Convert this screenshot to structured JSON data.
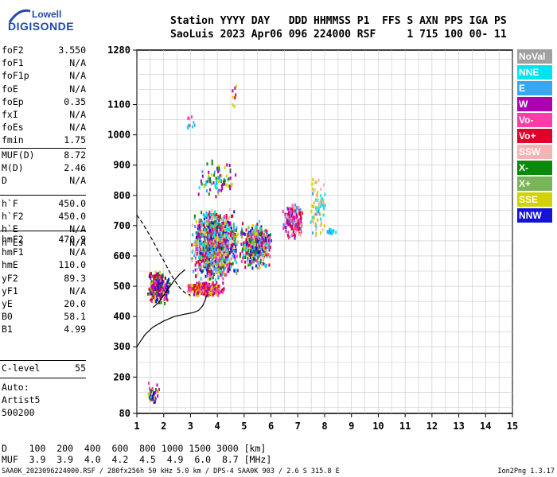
{
  "logo": {
    "line1": "Lowell",
    "line2": "DIGISONDE"
  },
  "header": {
    "line1": "Station YYYY DAY   DDD HHMMSS P1  FFS S AXN PPS IGA PS",
    "line2": "SaoLuis 2023 Apr06 096 224000 RSF     1 715 100 00- 11"
  },
  "params": [
    {
      "group": 1,
      "name": "foF2",
      "value": "3.550"
    },
    {
      "group": 1,
      "name": "foF1",
      "value": "N/A"
    },
    {
      "group": 1,
      "name": "foF1p",
      "value": "N/A"
    },
    {
      "group": 1,
      "name": "foE",
      "value": "N/A"
    },
    {
      "group": 1,
      "name": "foEp",
      "value": "0.35"
    },
    {
      "group": 1,
      "name": "fxI",
      "value": "N/A"
    },
    {
      "group": 1,
      "name": "foEs",
      "value": "N/A"
    },
    {
      "group": 1,
      "name": "fmin",
      "value": "1.75"
    },
    {
      "group": 2,
      "name": "MUF(D)",
      "value": "8.72"
    },
    {
      "group": 2,
      "name": "M(D)",
      "value": "2.46"
    },
    {
      "group": 2,
      "name": "D",
      "value": "N/A"
    },
    {
      "group": 3,
      "name": "h`F",
      "value": "450.0"
    },
    {
      "group": 3,
      "name": "h`F2",
      "value": "450.0"
    },
    {
      "group": 3,
      "name": "h`E",
      "value": "N/A"
    },
    {
      "group": 3,
      "name": "h`Es",
      "value": "N/A"
    },
    {
      "group": 4,
      "name": "hmF2",
      "value": "470.9"
    },
    {
      "group": 4,
      "name": "hmF1",
      "value": "N/A"
    },
    {
      "group": 4,
      "name": "hmE",
      "value": "110.0"
    },
    {
      "group": 4,
      "name": "yF2",
      "value": "89.3"
    },
    {
      "group": 4,
      "name": "yF1",
      "value": "N/A"
    },
    {
      "group": 4,
      "name": "yE",
      "value": "20.0"
    },
    {
      "group": 4,
      "name": "B0",
      "value": "58.1"
    },
    {
      "group": 4,
      "name": "B1",
      "value": "4.99"
    },
    {
      "group": 5,
      "name": "C-level",
      "value": "55"
    }
  ],
  "auto": {
    "line1": "Auto:",
    "line2": "Artist5",
    "line3": "500200"
  },
  "legend": [
    {
      "label": "NoVal",
      "color": "#a0a0a0"
    },
    {
      "label": "NNE",
      "color": "#00e4f0"
    },
    {
      "label": "E",
      "color": "#3aa6f0"
    },
    {
      "label": "W",
      "color": "#b000b0"
    },
    {
      "label": "Vo-",
      "color": "#ff3ca8"
    },
    {
      "label": "Vo+",
      "color": "#e0002a"
    },
    {
      "label": "SSW",
      "color": "#f4b4b4"
    },
    {
      "label": "X-",
      "color": "#0a8a0a"
    },
    {
      "label": "X+",
      "color": "#78b45a"
    },
    {
      "label": "SSE",
      "color": "#d2d200"
    },
    {
      "label": "NNW",
      "color": "#1414d2"
    }
  ],
  "footer": {
    "line1": "D    100  200  400  600  800 1000 1500 3000 [km]",
    "line2": "MUF  3.9  3.9  4.0  4.2  4.5  4.9  6.0  8.7 [MHz]",
    "line3": "SAA0K_2023096224000.RSF / 280fx256h 50 kHz 5.0 km / DPS-4 SAA0K 903 / 2.6 S 315.8 E",
    "version": "Ion2Png 1.3.17"
  },
  "chart_data": {
    "type": "scatter",
    "x_ticks": [
      1,
      2,
      3,
      4,
      5,
      6,
      7,
      8,
      9,
      10,
      11,
      12,
      13,
      14,
      15
    ],
    "y_ticks": [
      80,
      200,
      300,
      400,
      500,
      600,
      700,
      800,
      900,
      1000,
      1100,
      1280
    ],
    "xlim": [
      1,
      15
    ],
    "ylim": [
      80,
      1280
    ],
    "grid": true,
    "virtual_height_trace": {
      "x": [
        3.0,
        3.05,
        3.1,
        3.15,
        3.25,
        3.35,
        3.45,
        3.6,
        3.8,
        4.0,
        4.2,
        4.4,
        4.6,
        4.8,
        5.0,
        5.3,
        5.6,
        5.9,
        6.2,
        6.5,
        6.8,
        7.1,
        7.4,
        7.7
      ],
      "y": [
        480,
        485,
        490,
        495,
        510,
        525,
        545,
        565,
        585,
        600,
        615,
        625,
        630,
        635,
        640,
        648,
        655,
        662,
        668,
        675,
        682,
        690,
        700,
        712
      ]
    },
    "true_height_profile": {
      "x": [
        1.0,
        1.3,
        1.6,
        2.0,
        2.4,
        2.8,
        3.1,
        3.3,
        3.45,
        3.55,
        3.6
      ],
      "y": [
        300,
        340,
        365,
        385,
        400,
        408,
        413,
        420,
        435,
        455,
        470
      ]
    },
    "extrapolated_profile": {
      "x": [
        1.0,
        1.2,
        1.4,
        1.6,
        1.8,
        2.0,
        2.2,
        2.4,
        2.6,
        2.8,
        3.0
      ],
      "y": [
        735,
        710,
        680,
        650,
        615,
        585,
        550,
        520,
        495,
        478,
        470
      ]
    },
    "o_trace_left": {
      "x": [
        1.6,
        1.8,
        2.0,
        2.2,
        2.4,
        2.6,
        2.8
      ],
      "y": [
        430,
        445,
        470,
        495,
        520,
        540,
        555
      ]
    }
  }
}
